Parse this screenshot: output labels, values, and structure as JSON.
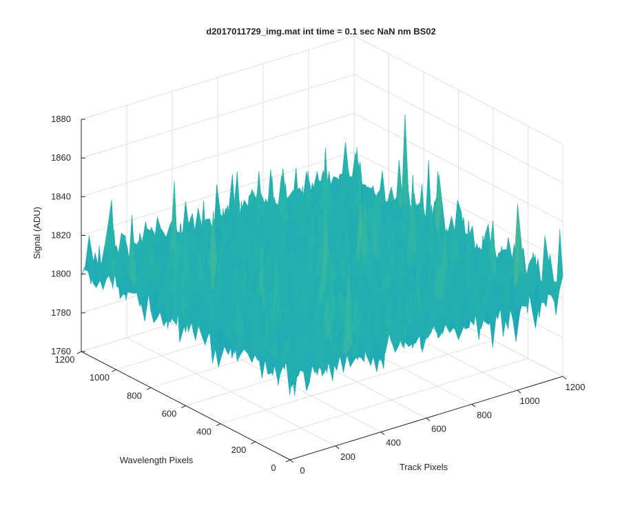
{
  "chart_data": {
    "type": "surface",
    "title": "d2017011729_img.mat int time = 0.1 sec  NaN nm BS02",
    "xlabel": "Track Pixels",
    "ylabel": "Wavelength Pixels",
    "zlabel": "Signal (ADU)",
    "xlim": [
      0,
      1200
    ],
    "ylim": [
      0,
      1200
    ],
    "zlim": [
      1760,
      1880
    ],
    "xticks": [
      "0",
      "200",
      "400",
      "600",
      "800",
      "1000",
      "1200"
    ],
    "yticks": [
      "0",
      "200",
      "400",
      "600",
      "800",
      "1000",
      "1200"
    ],
    "zticks": [
      "1760",
      "1780",
      "1800",
      "1820",
      "1840",
      "1860",
      "1880"
    ],
    "grid": true,
    "colormap": "parula",
    "colors": {
      "low": "#0f8fd4",
      "mid": "#28b5a9",
      "high": "#d2c443"
    },
    "surface_summary": {
      "data_extent": {
        "track": [
          0,
          1200
        ],
        "wavelength": [
          0,
          1200
        ]
      },
      "signal_typical_range": [
        1775,
        1840
      ],
      "signal_mean": 1805,
      "signal_peak_max": 1865,
      "signal_min": 1765
    }
  }
}
